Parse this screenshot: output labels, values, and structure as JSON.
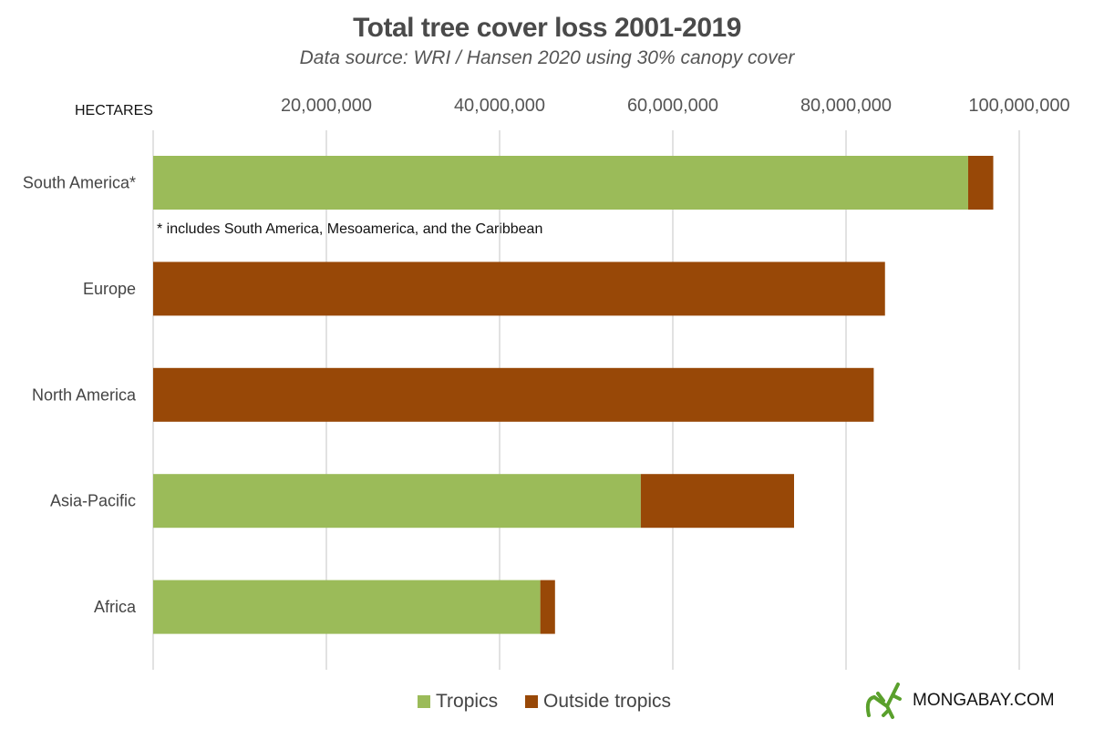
{
  "chart_data": {
    "type": "bar",
    "orientation": "horizontal",
    "stacked": true,
    "title": "Total tree cover loss 2001-2019",
    "subtitle": "Data source: WRI / Hansen 2020 using 30% canopy cover",
    "xlabel": "HECTARES",
    "xlim": [
      0,
      100000000
    ],
    "x_ticks": [
      "20,000,000",
      "40,000,000",
      "60,000,000",
      "80,000,000",
      "100,000,000"
    ],
    "grid": true,
    "legend_position": "bottom",
    "categories": [
      "South America*",
      "Europe",
      "North America",
      "Asia-Pacific",
      "Africa"
    ],
    "series": [
      {
        "name": "Tropics",
        "color": "#9bbb59",
        "values": [
          94100000,
          0,
          0,
          56300000,
          44700000
        ]
      },
      {
        "name": "Outside tropics",
        "color": "#984807",
        "values": [
          2900000,
          84500000,
          83200000,
          17700000,
          1700000
        ]
      }
    ],
    "annotation": "* includes South America, Mesoamerica, and the Caribbean"
  },
  "logo": {
    "text": "MONGABAY.COM",
    "color": "#5aa02c"
  }
}
